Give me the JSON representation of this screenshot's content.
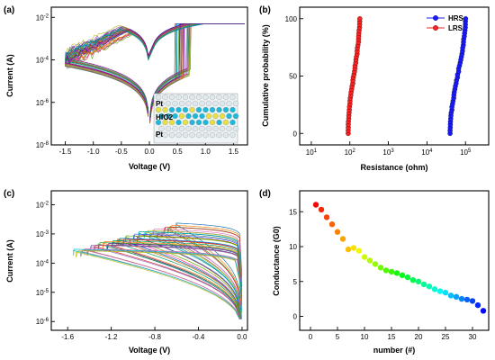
{
  "panels": {
    "a": {
      "label": "(a)",
      "xlabel": "Voltage (V)",
      "ylabel": "Current (A)"
    },
    "b": {
      "label": "(b)",
      "xlabel": "Resistance (ohm)",
      "ylabel": "Cumulative probability (%)"
    },
    "c": {
      "label": "(c)",
      "xlabel": "Voltage (V)",
      "ylabel": "Current (A)"
    },
    "d": {
      "label": "(d)",
      "xlabel": "number (#)",
      "ylabel": "Conductance (G0)"
    }
  },
  "inset": {
    "top_electrode": "Pt",
    "oxide": "HfO2",
    "bottom_electrode": "Pt"
  },
  "chart_data": [
    {
      "panel": "a",
      "type": "line",
      "xlabel": "Voltage (V)",
      "ylabel": "Current (A)",
      "xlim": [
        -1.75,
        1.75
      ],
      "ylim": [
        1e-08,
        0.03
      ],
      "yscale": "log",
      "xticks": [
        "-1.5",
        "-1.0",
        "-0.5",
        "0.0",
        "0.5",
        "1.0",
        "1.5"
      ],
      "yticks": [
        "10^-8",
        "10^-6",
        "10^-4",
        "10^-2"
      ],
      "compliance_current": 0.005,
      "set_voltage_range": [
        0.45,
        0.75
      ],
      "reset_voltage_range": [
        -0.3,
        -0.5
      ],
      "curve_count": 40
    },
    {
      "panel": "b",
      "type": "scatter",
      "xlabel": "Resistance (ohm)",
      "ylabel": "Cumulative probability (%)",
      "xscale": "log",
      "xlim": [
        5,
        400000
      ],
      "ylim": [
        -10,
        110
      ],
      "xticks": [
        "10^1",
        "10^2",
        "10^3",
        "10^4",
        "10^5"
      ],
      "yticks": [
        "0",
        "50",
        "100"
      ],
      "legend": "top-right",
      "series": [
        {
          "name": "HRS",
          "color": "#1a1aff",
          "values_ohm_range": [
            40000,
            100000
          ]
        },
        {
          "name": "LRS",
          "color": "#ff2020",
          "values_ohm_range": [
            90,
            180
          ]
        }
      ]
    },
    {
      "panel": "c",
      "type": "line",
      "xlabel": "Voltage (V)",
      "ylabel": "Current (A)",
      "xlim": [
        -1.75,
        0.05
      ],
      "ylim": [
        5e-07,
        0.03
      ],
      "yscale": "log",
      "xticks": [
        "-1.6",
        "-1.2",
        "-0.8",
        "-0.4",
        "0.0"
      ],
      "yticks": [
        "10^-6",
        "10^-5",
        "10^-4",
        "10^-3",
        "10^-2"
      ],
      "curve_count": 30
    },
    {
      "panel": "d",
      "type": "scatter",
      "xlabel": "number (#)",
      "ylabel": "Conductance (G0)",
      "xlim": [
        -2,
        33
      ],
      "ylim": [
        -2,
        18
      ],
      "xticks": [
        "0",
        "5",
        "10",
        "15",
        "20",
        "25",
        "30"
      ],
      "yticks": [
        "0",
        "5",
        "10",
        "15"
      ],
      "x": [
        1,
        2,
        3,
        4,
        5,
        6,
        7,
        8,
        9,
        10,
        11,
        12,
        13,
        14,
        15,
        16,
        17,
        18,
        19,
        20,
        21,
        22,
        23,
        24,
        25,
        26,
        27,
        28,
        29,
        30,
        31,
        32
      ],
      "y": [
        16.0,
        15.3,
        14.2,
        13.2,
        12.1,
        11.1,
        9.6,
        9.8,
        9.4,
        8.5,
        8.0,
        7.5,
        7.0,
        6.6,
        6.4,
        6.2,
        5.9,
        5.6,
        5.2,
        5.0,
        4.6,
        4.3,
        3.9,
        3.6,
        3.4,
        3.0,
        2.8,
        2.5,
        2.4,
        2.2,
        1.6,
        0.8
      ]
    }
  ]
}
